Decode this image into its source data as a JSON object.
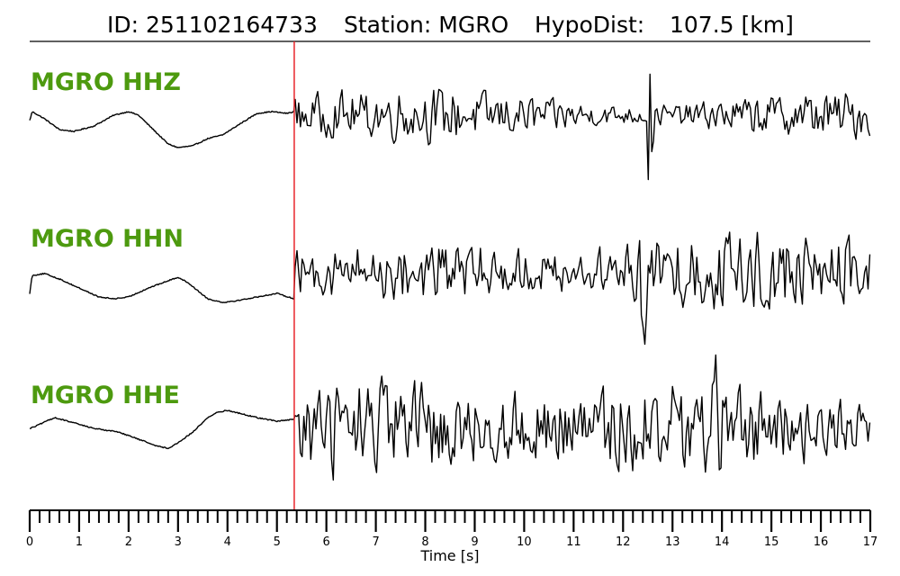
{
  "title": {
    "id_label": "ID: 251102164733",
    "station_label": "Station: MGRO",
    "dist_label": "HypoDist:",
    "dist_value": "107.5 [km]"
  },
  "colors": {
    "trace": "#000000",
    "pick_line": "#e8252b",
    "label": "#4d9a0f",
    "axis": "#000000"
  },
  "chart_data": {
    "type": "line",
    "title": "ID: 251102164733   Station: MGRO   HypoDist:   107.5 [km]",
    "xlabel": "Time [s]",
    "ylabel": "",
    "xlim": [
      0,
      17
    ],
    "x_ticks": [
      "0",
      "1",
      "2",
      "3",
      "4",
      "5",
      "6",
      "7",
      "8",
      "9",
      "10",
      "11",
      "12",
      "13",
      "14",
      "15",
      "16",
      "17"
    ],
    "minor_tick_step": 0.2,
    "pick_time": 5.35,
    "grid": false,
    "legend": "none",
    "series": [
      {
        "name": "MGRO HHZ",
        "t": [
          0.0,
          0.05,
          0.3,
          0.6,
          0.9,
          1.3,
          1.7,
          2.0,
          2.2,
          2.5,
          2.8,
          3.0,
          3.3,
          3.6,
          3.9,
          4.3,
          4.6,
          4.9,
          5.2,
          5.35
        ],
        "amp": [
          -0.15,
          0.1,
          -0.1,
          -0.4,
          -0.45,
          -0.3,
          0.0,
          0.1,
          0.0,
          -0.4,
          -0.8,
          -0.9,
          -0.85,
          -0.65,
          -0.55,
          -0.2,
          0.05,
          0.1,
          0.05,
          0.1
        ]
      },
      {
        "name": "MGRO HHN",
        "t": [
          0.0,
          0.05,
          0.3,
          0.6,
          1.0,
          1.4,
          1.7,
          2.0,
          2.4,
          2.8,
          3.0,
          3.2,
          3.6,
          3.9,
          4.2,
          4.6,
          5.0,
          5.35
        ],
        "amp": [
          -0.6,
          -0.1,
          -0.05,
          -0.2,
          -0.45,
          -0.7,
          -0.75,
          -0.7,
          -0.45,
          -0.25,
          -0.15,
          -0.3,
          -0.75,
          -0.85,
          -0.8,
          -0.7,
          -0.6,
          -0.75
        ]
      },
      {
        "name": "MGRO HHE",
        "t": [
          0.0,
          0.1,
          0.5,
          0.9,
          1.3,
          1.8,
          2.2,
          2.6,
          2.8,
          3.0,
          3.3,
          3.6,
          3.8,
          4.0,
          4.3,
          4.6,
          5.0,
          5.35
        ],
        "amp": [
          0.0,
          0.05,
          0.3,
          0.15,
          0.0,
          -0.1,
          -0.3,
          -0.5,
          -0.55,
          -0.4,
          -0.1,
          0.3,
          0.45,
          0.5,
          0.4,
          0.3,
          0.2,
          0.25
        ]
      }
    ]
  }
}
